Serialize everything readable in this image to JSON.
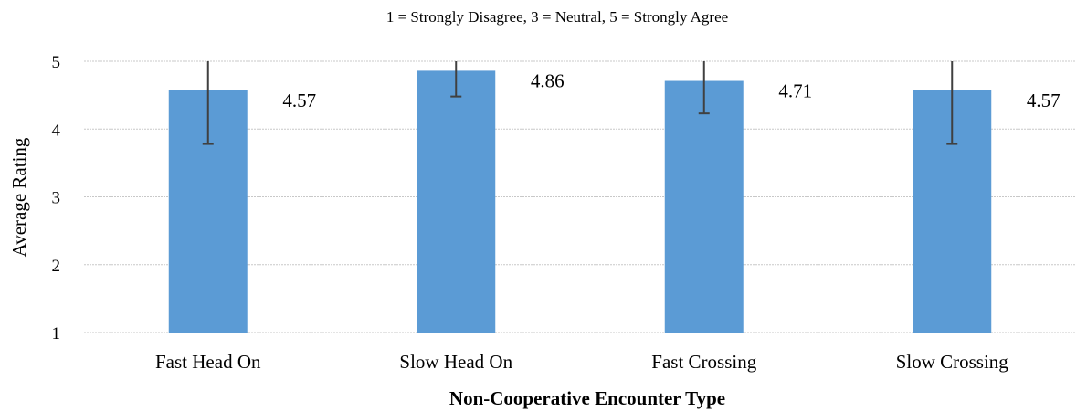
{
  "chart_data": {
    "type": "bar",
    "title": "1 = Strongly Disagree, 3 = Neutral, 5 = Strongly Agree",
    "xlabel": "Non-Cooperative Encounter Type",
    "ylabel": "Average Rating",
    "categories": [
      "Fast Head On",
      "Slow Head On",
      "Fast Crossing",
      "Slow Crossing"
    ],
    "values": [
      4.57,
      4.86,
      4.71,
      4.57
    ],
    "data_labels": [
      "4.57",
      "4.86",
      "4.71",
      "4.57"
    ],
    "error_bars": [
      {
        "low": 3.78,
        "high": 5.0
      },
      {
        "low": 4.48,
        "high": 5.0
      },
      {
        "low": 4.23,
        "high": 5.0
      },
      {
        "low": 3.78,
        "high": 5.0
      }
    ],
    "ylim": [
      1,
      5
    ],
    "yticks": [
      1,
      2,
      3,
      4,
      5
    ],
    "ytick_labels": [
      "1",
      "2",
      "3",
      "4",
      "5"
    ],
    "grid": true,
    "legend": "none",
    "bar_color": "#5b9bd5",
    "error_bar_color": "#404040"
  }
}
